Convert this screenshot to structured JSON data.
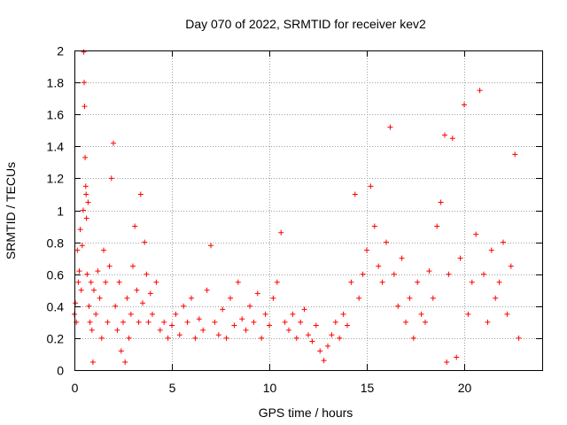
{
  "chart_data": {
    "type": "scatter",
    "title": "Day 070 of 2022, SRMTID for receiver kev2",
    "xlabel": "GPS time / hours",
    "ylabel": "SRMTID / TECUs",
    "xlim": [
      0,
      24
    ],
    "ylim": [
      0,
      2
    ],
    "xticks": [
      0,
      5,
      10,
      15,
      20
    ],
    "yticks": [
      0,
      0.2,
      0.4,
      0.6,
      0.8,
      1,
      1.2,
      1.4,
      1.6,
      1.8,
      2
    ],
    "xtick_labels": [
      "0",
      "5",
      "10",
      "15",
      "20"
    ],
    "ytick_labels": [
      "0",
      "0.2",
      "0.4",
      "0.6",
      "0.8",
      "1",
      "1.2",
      "1.4",
      "1.6",
      "1.8",
      "2"
    ],
    "grid": true,
    "marker": "+",
    "color": "#ff0000",
    "series": [
      {
        "name": "SRMTID",
        "points": [
          [
            0.0,
            0.35
          ],
          [
            0.05,
            0.42
          ],
          [
            0.1,
            0.3
          ],
          [
            0.15,
            0.75
          ],
          [
            0.2,
            0.55
          ],
          [
            0.25,
            0.62
          ],
          [
            0.3,
            0.88
          ],
          [
            0.35,
            0.5
          ],
          [
            0.4,
            0.78
          ],
          [
            0.45,
            1.0
          ],
          [
            0.48,
            1.99
          ],
          [
            0.5,
            1.8
          ],
          [
            0.52,
            1.65
          ],
          [
            0.55,
            1.33
          ],
          [
            0.58,
            1.15
          ],
          [
            0.6,
            1.1
          ],
          [
            0.62,
            0.95
          ],
          [
            0.65,
            0.6
          ],
          [
            0.7,
            1.05
          ],
          [
            0.75,
            0.4
          ],
          [
            0.8,
            0.3
          ],
          [
            0.85,
            0.55
          ],
          [
            0.9,
            0.25
          ],
          [
            0.95,
            0.05
          ],
          [
            1.0,
            0.5
          ],
          [
            1.1,
            0.35
          ],
          [
            1.2,
            0.62
          ],
          [
            1.3,
            0.45
          ],
          [
            1.4,
            0.2
          ],
          [
            1.5,
            0.75
          ],
          [
            1.6,
            0.55
          ],
          [
            1.7,
            0.3
          ],
          [
            1.8,
            0.65
          ],
          [
            1.9,
            1.2
          ],
          [
            2.0,
            1.42
          ],
          [
            2.1,
            0.4
          ],
          [
            2.2,
            0.25
          ],
          [
            2.3,
            0.55
          ],
          [
            2.4,
            0.12
          ],
          [
            2.5,
            0.3
          ],
          [
            2.6,
            0.05
          ],
          [
            2.7,
            0.45
          ],
          [
            2.8,
            0.2
          ],
          [
            2.9,
            0.35
          ],
          [
            3.0,
            0.65
          ],
          [
            3.1,
            0.9
          ],
          [
            3.2,
            0.5
          ],
          [
            3.3,
            0.3
          ],
          [
            3.4,
            1.1
          ],
          [
            3.5,
            0.42
          ],
          [
            3.6,
            0.8
          ],
          [
            3.7,
            0.6
          ],
          [
            3.8,
            0.3
          ],
          [
            3.9,
            0.48
          ],
          [
            4.0,
            0.35
          ],
          [
            4.2,
            0.55
          ],
          [
            4.4,
            0.25
          ],
          [
            4.6,
            0.3
          ],
          [
            4.8,
            0.2
          ],
          [
            5.0,
            0.28
          ],
          [
            5.2,
            0.35
          ],
          [
            5.4,
            0.22
          ],
          [
            5.6,
            0.4
          ],
          [
            5.8,
            0.3
          ],
          [
            6.0,
            0.45
          ],
          [
            6.2,
            0.2
          ],
          [
            6.4,
            0.32
          ],
          [
            6.6,
            0.25
          ],
          [
            6.8,
            0.5
          ],
          [
            7.0,
            0.78
          ],
          [
            7.2,
            0.3
          ],
          [
            7.4,
            0.22
          ],
          [
            7.6,
            0.38
          ],
          [
            7.8,
            0.2
          ],
          [
            8.0,
            0.45
          ],
          [
            8.2,
            0.28
          ],
          [
            8.4,
            0.55
          ],
          [
            8.6,
            0.32
          ],
          [
            8.8,
            0.25
          ],
          [
            9.0,
            0.4
          ],
          [
            9.2,
            0.3
          ],
          [
            9.4,
            0.48
          ],
          [
            9.6,
            0.2
          ],
          [
            9.8,
            0.35
          ],
          [
            10.0,
            0.28
          ],
          [
            10.2,
            0.45
          ],
          [
            10.4,
            0.55
          ],
          [
            10.6,
            0.86
          ],
          [
            10.8,
            0.3
          ],
          [
            11.0,
            0.25
          ],
          [
            11.2,
            0.35
          ],
          [
            11.4,
            0.2
          ],
          [
            11.6,
            0.3
          ],
          [
            11.8,
            0.38
          ],
          [
            12.0,
            0.22
          ],
          [
            12.2,
            0.18
          ],
          [
            12.4,
            0.28
          ],
          [
            12.6,
            0.12
          ],
          [
            12.8,
            0.06
          ],
          [
            13.0,
            0.15
          ],
          [
            13.2,
            0.22
          ],
          [
            13.4,
            0.3
          ],
          [
            13.6,
            0.2
          ],
          [
            13.8,
            0.35
          ],
          [
            14.0,
            0.28
          ],
          [
            14.2,
            0.55
          ],
          [
            14.4,
            1.1
          ],
          [
            14.6,
            0.45
          ],
          [
            14.8,
            0.6
          ],
          [
            15.0,
            0.75
          ],
          [
            15.2,
            1.15
          ],
          [
            15.4,
            0.9
          ],
          [
            15.6,
            0.65
          ],
          [
            15.8,
            0.55
          ],
          [
            16.0,
            0.8
          ],
          [
            16.2,
            1.52
          ],
          [
            16.4,
            0.6
          ],
          [
            16.6,
            0.4
          ],
          [
            16.8,
            0.7
          ],
          [
            17.0,
            0.3
          ],
          [
            17.2,
            0.45
          ],
          [
            17.4,
            0.2
          ],
          [
            17.6,
            0.55
          ],
          [
            17.8,
            0.35
          ],
          [
            18.0,
            0.3
          ],
          [
            18.2,
            0.62
          ],
          [
            18.4,
            0.45
          ],
          [
            18.6,
            0.9
          ],
          [
            18.8,
            1.05
          ],
          [
            19.0,
            1.47
          ],
          [
            19.1,
            0.05
          ],
          [
            19.2,
            0.6
          ],
          [
            19.4,
            1.45
          ],
          [
            19.6,
            0.08
          ],
          [
            19.8,
            0.7
          ],
          [
            20.0,
            1.66
          ],
          [
            20.2,
            0.35
          ],
          [
            20.4,
            0.55
          ],
          [
            20.6,
            0.85
          ],
          [
            20.8,
            1.75
          ],
          [
            21.0,
            0.6
          ],
          [
            21.2,
            0.3
          ],
          [
            21.4,
            0.75
          ],
          [
            21.6,
            0.45
          ],
          [
            21.8,
            0.55
          ],
          [
            22.0,
            0.8
          ],
          [
            22.2,
            0.35
          ],
          [
            22.4,
            0.65
          ],
          [
            22.6,
            1.35
          ],
          [
            22.8,
            0.2
          ]
        ]
      }
    ]
  }
}
